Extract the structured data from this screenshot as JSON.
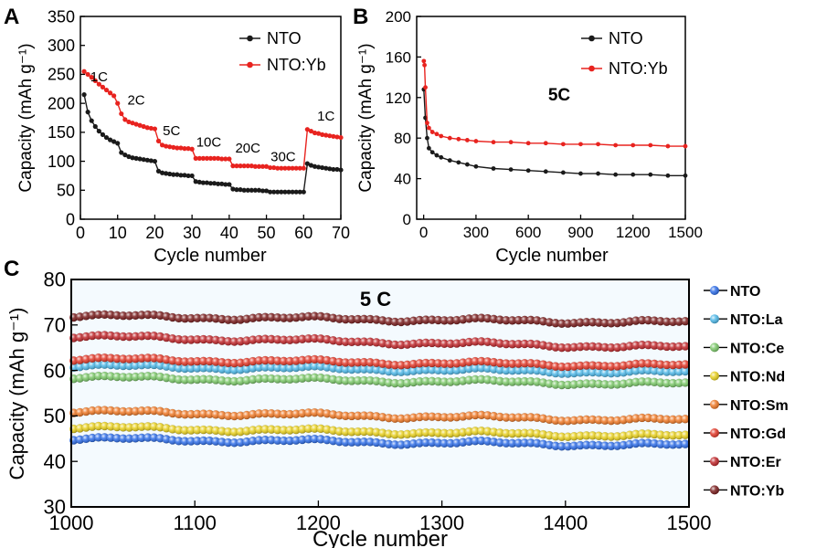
{
  "panels": {
    "A": {
      "letter": "A"
    },
    "B": {
      "letter": "B"
    },
    "C": {
      "letter": "C"
    }
  },
  "chart_data": [
    {
      "id": "A",
      "type": "scatter",
      "xlabel": "Cycle number",
      "ylabel": "Capacity (mAh g⁻¹)",
      "xlim": [
        0,
        70
      ],
      "ylim": [
        0,
        350
      ],
      "xticks": [
        0,
        10,
        20,
        30,
        40,
        50,
        60,
        70
      ],
      "yticks": [
        0,
        50,
        100,
        150,
        200,
        250,
        300,
        350
      ],
      "grid": false,
      "legend_position": "top-right",
      "annotations": [
        {
          "text": "1C",
          "x": 5,
          "y": 238
        },
        {
          "text": "2C",
          "x": 15,
          "y": 198
        },
        {
          "text": "5C",
          "x": 24.5,
          "y": 145
        },
        {
          "text": "10C",
          "x": 34.5,
          "y": 125
        },
        {
          "text": "20C",
          "x": 45,
          "y": 115
        },
        {
          "text": "30C",
          "x": 54.5,
          "y": 100
        },
        {
          "text": "1C",
          "x": 66,
          "y": 170
        }
      ],
      "series": [
        {
          "name": "NTO",
          "color": "#1a1a1a",
          "x": [
            1,
            2,
            3,
            4,
            5,
            6,
            7,
            8,
            9,
            10,
            11,
            12,
            13,
            14,
            15,
            16,
            17,
            18,
            19,
            20,
            21,
            22,
            23,
            24,
            25,
            26,
            27,
            28,
            29,
            30,
            31,
            32,
            33,
            34,
            35,
            36,
            37,
            38,
            39,
            40,
            41,
            42,
            43,
            44,
            45,
            46,
            47,
            48,
            49,
            50,
            51,
            52,
            53,
            54,
            55,
            56,
            57,
            58,
            59,
            60,
            61,
            62,
            63,
            64,
            65,
            66,
            67,
            68,
            69,
            70
          ],
          "y": [
            215,
            185,
            170,
            160,
            152,
            146,
            141,
            137,
            134,
            131,
            115,
            111,
            108,
            106,
            105,
            104,
            103,
            102,
            101,
            100,
            83,
            80,
            79,
            78,
            77,
            77,
            76,
            76,
            75,
            75,
            65,
            64,
            63,
            63,
            62,
            62,
            61,
            61,
            60,
            60,
            52,
            51,
            51,
            50,
            50,
            50,
            50,
            50,
            49,
            49,
            47,
            47,
            47,
            47,
            47,
            47,
            47,
            47,
            47,
            47,
            96,
            93,
            91,
            90,
            89,
            88,
            87,
            86,
            86,
            85
          ]
        },
        {
          "name": "NTO:Yb",
          "color": "#e8231f",
          "x": [
            1,
            2,
            3,
            4,
            5,
            6,
            7,
            8,
            9,
            10,
            11,
            12,
            13,
            14,
            15,
            16,
            17,
            18,
            19,
            20,
            21,
            22,
            23,
            24,
            25,
            26,
            27,
            28,
            29,
            30,
            31,
            32,
            33,
            34,
            35,
            36,
            37,
            38,
            39,
            40,
            41,
            42,
            43,
            44,
            45,
            46,
            47,
            48,
            49,
            50,
            51,
            52,
            53,
            54,
            55,
            56,
            57,
            58,
            59,
            60,
            61,
            62,
            63,
            64,
            65,
            66,
            67,
            68,
            69,
            70
          ],
          "y": [
            255,
            250,
            245,
            239,
            233,
            228,
            223,
            218,
            213,
            200,
            182,
            172,
            168,
            166,
            164,
            162,
            160,
            158,
            157,
            156,
            135,
            128,
            126,
            125,
            124,
            123,
            123,
            122,
            122,
            121,
            105,
            105,
            105,
            105,
            105,
            105,
            105,
            104,
            104,
            104,
            92,
            92,
            92,
            92,
            92,
            92,
            91,
            91,
            91,
            91,
            89,
            89,
            88,
            88,
            88,
            88,
            88,
            88,
            88,
            88,
            155,
            152,
            149,
            148,
            146,
            145,
            144,
            143,
            142,
            141
          ]
        }
      ]
    },
    {
      "id": "B",
      "type": "scatter",
      "title": "5C",
      "xlabel": "Cycle number",
      "ylabel": "Capacity (mAh g⁻¹)",
      "xlim": [
        -40,
        1500
      ],
      "ylim": [
        0,
        200
      ],
      "xticks": [
        0,
        300,
        600,
        900,
        1200,
        1500
      ],
      "yticks": [
        0,
        40,
        80,
        120,
        160,
        200
      ],
      "grid": false,
      "legend_position": "top-left",
      "series": [
        {
          "name": "NTO",
          "color": "#1a1a1a",
          "x": [
            1,
            10,
            20,
            30,
            50,
            75,
            100,
            150,
            200,
            250,
            300,
            400,
            500,
            600,
            700,
            800,
            900,
            1000,
            1100,
            1200,
            1300,
            1400,
            1500
          ],
          "y": [
            128,
            100,
            80,
            70,
            66,
            63,
            61,
            58,
            56,
            54,
            52,
            50,
            49,
            48,
            47,
            46,
            45,
            45,
            44,
            44,
            44,
            43,
            43
          ]
        },
        {
          "name": "NTO:Yb",
          "color": "#e8231f",
          "x": [
            1,
            5,
            10,
            20,
            30,
            50,
            75,
            100,
            150,
            200,
            250,
            300,
            400,
            500,
            600,
            700,
            800,
            900,
            1000,
            1100,
            1200,
            1300,
            1400,
            1500
          ],
          "y": [
            156,
            152,
            130,
            95,
            90,
            86,
            84,
            82,
            80,
            79,
            78,
            77,
            76,
            76,
            75,
            75,
            74,
            74,
            74,
            73,
            73,
            73,
            72,
            72
          ]
        }
      ]
    },
    {
      "id": "C",
      "type": "scatter",
      "title": "5 C",
      "xlabel": "Cycle number",
      "ylabel": "Capacity (mAh g⁻¹)",
      "xlim": [
        1000,
        1500
      ],
      "ylim": [
        30,
        80
      ],
      "xticks": [
        1000,
        1100,
        1200,
        1300,
        1400,
        1500
      ],
      "yticks": [
        30,
        40,
        50,
        60,
        70,
        80
      ],
      "grid": false,
      "legend_position": "right",
      "series": [
        {
          "name": "NTO",
          "color": "#2f6ee8",
          "start": 45,
          "end": 43.5
        },
        {
          "name": "NTO:La",
          "color": "#4fb8e8",
          "start": 61,
          "end": 59.5
        },
        {
          "name": "NTO:Ce",
          "color": "#7cc86a",
          "start": 58.5,
          "end": 57
        },
        {
          "name": "NTO:Nd",
          "color": "#e8d020",
          "start": 47.5,
          "end": 45.5
        },
        {
          "name": "NTO:Sm",
          "color": "#ef7a28",
          "start": 51,
          "end": 49
        },
        {
          "name": "NTO:Gd",
          "color": "#e23a2a",
          "start": 62.5,
          "end": 61
        },
        {
          "name": "NTO:Er",
          "color": "#c0282c",
          "start": 67.5,
          "end": 65
        },
        {
          "name": "NTO:Yb",
          "color": "#7a1e1e",
          "start": 72,
          "end": 70.5
        }
      ]
    }
  ]
}
